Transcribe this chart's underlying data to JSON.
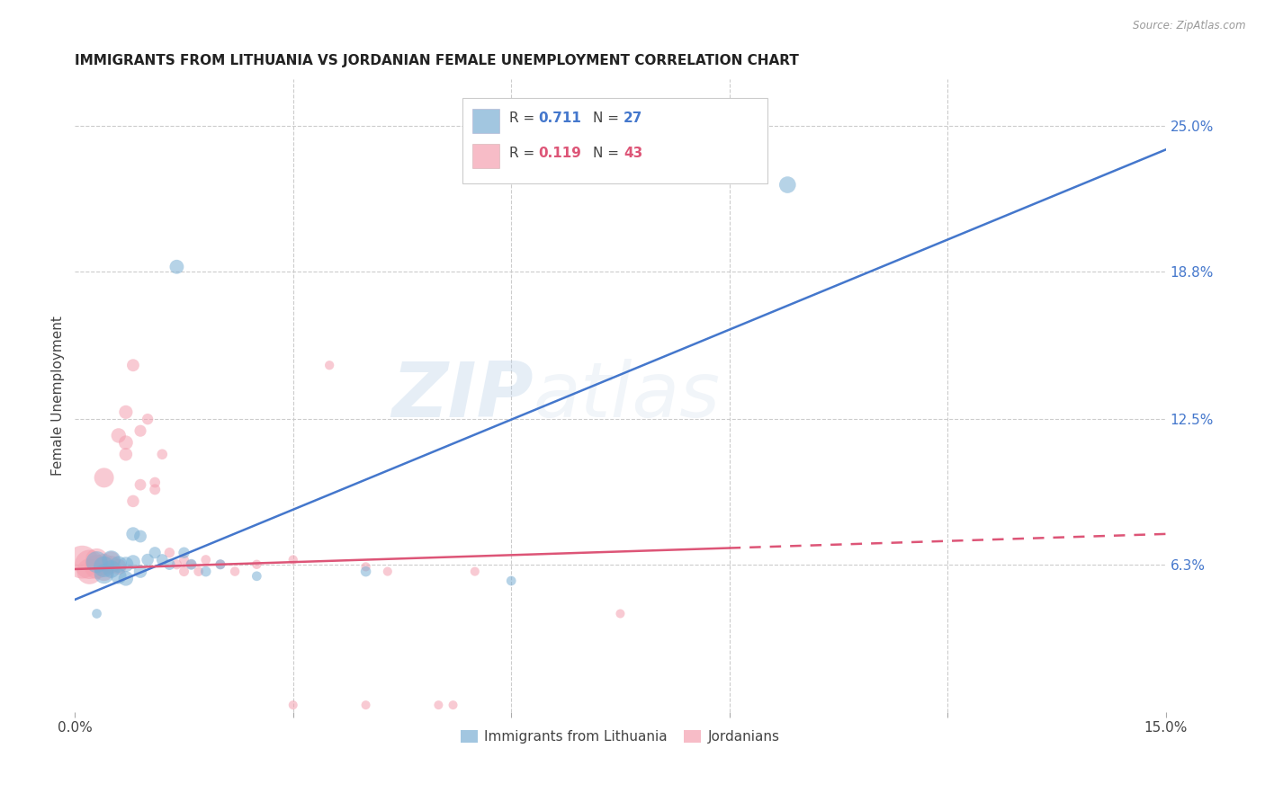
{
  "title": "IMMIGRANTS FROM LITHUANIA VS JORDANIAN FEMALE UNEMPLOYMENT CORRELATION CHART",
  "source": "Source: ZipAtlas.com",
  "ylabel": "Female Unemployment",
  "xlim": [
    0.0,
    0.15
  ],
  "ylim": [
    0.0,
    0.27
  ],
  "x_ticks": [
    0.0,
    0.03,
    0.06,
    0.09,
    0.12,
    0.15
  ],
  "x_tick_labels": [
    "0.0%",
    "",
    "",
    "",
    "",
    "15.0%"
  ],
  "y_ticks_right": [
    0.063,
    0.125,
    0.188,
    0.25
  ],
  "y_tick_labels_right": [
    "6.3%",
    "12.5%",
    "18.8%",
    "25.0%"
  ],
  "watermark_part1": "ZIP",
  "watermark_part2": "atlas",
  "legend": {
    "series1_label": "Immigrants from Lithuania",
    "series2_label": "Jordanians",
    "R1": "0.711",
    "N1": "27",
    "R2": "0.119",
    "N2": "43"
  },
  "color_blue": "#7BAFD4",
  "color_pink": "#F4A0B0",
  "color_blue_line": "#4477CC",
  "color_pink_line": "#DD5577",
  "blue_scatter": [
    [
      0.003,
      0.064
    ],
    [
      0.004,
      0.062
    ],
    [
      0.004,
      0.059
    ],
    [
      0.005,
      0.065
    ],
    [
      0.005,
      0.061
    ],
    [
      0.006,
      0.063
    ],
    [
      0.006,
      0.058
    ],
    [
      0.007,
      0.063
    ],
    [
      0.007,
      0.057
    ],
    [
      0.008,
      0.064
    ],
    [
      0.008,
      0.076
    ],
    [
      0.009,
      0.06
    ],
    [
      0.009,
      0.075
    ],
    [
      0.01,
      0.065
    ],
    [
      0.011,
      0.068
    ],
    [
      0.012,
      0.065
    ],
    [
      0.013,
      0.063
    ],
    [
      0.015,
      0.068
    ],
    [
      0.016,
      0.063
    ],
    [
      0.018,
      0.06
    ],
    [
      0.02,
      0.063
    ],
    [
      0.025,
      0.058
    ],
    [
      0.014,
      0.19
    ],
    [
      0.06,
      0.056
    ],
    [
      0.098,
      0.225
    ],
    [
      0.003,
      0.042
    ],
    [
      0.04,
      0.06
    ]
  ],
  "blue_sizes": [
    300,
    280,
    250,
    220,
    200,
    180,
    160,
    150,
    140,
    130,
    120,
    110,
    100,
    95,
    90,
    85,
    80,
    80,
    75,
    70,
    65,
    60,
    130,
    60,
    180,
    60,
    70
  ],
  "pink_scatter": [
    [
      0.001,
      0.064
    ],
    [
      0.002,
      0.063
    ],
    [
      0.002,
      0.06
    ],
    [
      0.003,
      0.062
    ],
    [
      0.003,
      0.065
    ],
    [
      0.004,
      0.063
    ],
    [
      0.004,
      0.1
    ],
    [
      0.004,
      0.06
    ],
    [
      0.005,
      0.063
    ],
    [
      0.005,
      0.065
    ],
    [
      0.006,
      0.062
    ],
    [
      0.006,
      0.118
    ],
    [
      0.007,
      0.115
    ],
    [
      0.007,
      0.128
    ],
    [
      0.007,
      0.11
    ],
    [
      0.008,
      0.148
    ],
    [
      0.008,
      0.09
    ],
    [
      0.009,
      0.12
    ],
    [
      0.009,
      0.097
    ],
    [
      0.01,
      0.125
    ],
    [
      0.011,
      0.095
    ],
    [
      0.011,
      0.098
    ],
    [
      0.012,
      0.11
    ],
    [
      0.013,
      0.068
    ],
    [
      0.014,
      0.063
    ],
    [
      0.015,
      0.06
    ],
    [
      0.015,
      0.065
    ],
    [
      0.016,
      0.063
    ],
    [
      0.017,
      0.06
    ],
    [
      0.018,
      0.065
    ],
    [
      0.02,
      0.063
    ],
    [
      0.022,
      0.06
    ],
    [
      0.025,
      0.063
    ],
    [
      0.03,
      0.065
    ],
    [
      0.035,
      0.148
    ],
    [
      0.04,
      0.062
    ],
    [
      0.043,
      0.06
    ],
    [
      0.05,
      0.003
    ],
    [
      0.052,
      0.003
    ],
    [
      0.055,
      0.06
    ],
    [
      0.075,
      0.042
    ],
    [
      0.03,
      0.003
    ],
    [
      0.04,
      0.003
    ]
  ],
  "pink_sizes": [
    700,
    550,
    420,
    380,
    330,
    290,
    250,
    230,
    200,
    180,
    160,
    140,
    130,
    120,
    110,
    100,
    95,
    90,
    85,
    80,
    75,
    72,
    70,
    68,
    65,
    63,
    62,
    60,
    60,
    60,
    58,
    57,
    56,
    55,
    55,
    54,
    53,
    52,
    52,
    53,
    52,
    52,
    52
  ],
  "blue_line": {
    "x0": 0.0,
    "y0": 0.048,
    "x1": 0.15,
    "y1": 0.24
  },
  "pink_line_solid": {
    "x0": 0.0,
    "y0": 0.061,
    "x1": 0.09,
    "y1": 0.07
  },
  "pink_line_dash": {
    "x0": 0.09,
    "y0": 0.07,
    "x1": 0.15,
    "y1": 0.076
  },
  "background_color": "#FFFFFF",
  "grid_color": "#CCCCCC"
}
